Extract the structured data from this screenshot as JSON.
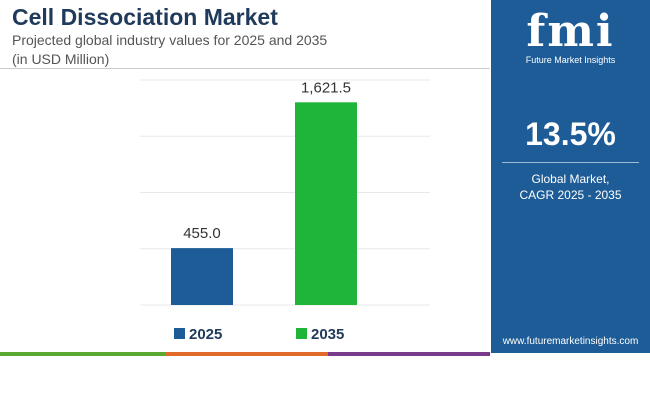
{
  "header": {
    "title": "Cell Dissociation Market",
    "subtitle_line1": "Projected global industry values for 2025 and 2035",
    "subtitle_line2": "(in USD Million)"
  },
  "colors": {
    "series_2025": "#1d5c96",
    "series_2035": "#1eb53a",
    "panel": "#1d5c96",
    "strip": [
      "#5aa832",
      "#e06a2a",
      "#7a3a8c"
    ]
  },
  "chart_data": {
    "type": "bar",
    "categories": [
      "2025",
      "2035"
    ],
    "values": [
      455.0,
      1621.5
    ],
    "value_labels": [
      "455.0",
      "1,621.5"
    ],
    "title": "",
    "xlabel": "",
    "ylabel": "",
    "ylim": [
      0,
      1800
    ],
    "grid": true,
    "legend": {
      "position": "bottom",
      "entries": [
        "2025",
        "2035"
      ]
    }
  },
  "sidebar": {
    "logo_text": "fmi",
    "logo_tagline": "Future Market Insights",
    "cagr_value": "13.5%",
    "cagr_label_line1": "Global Market,",
    "cagr_label_line2": "CAGR 2025 - 2035",
    "website": "www.futuremarketinsights.com"
  }
}
